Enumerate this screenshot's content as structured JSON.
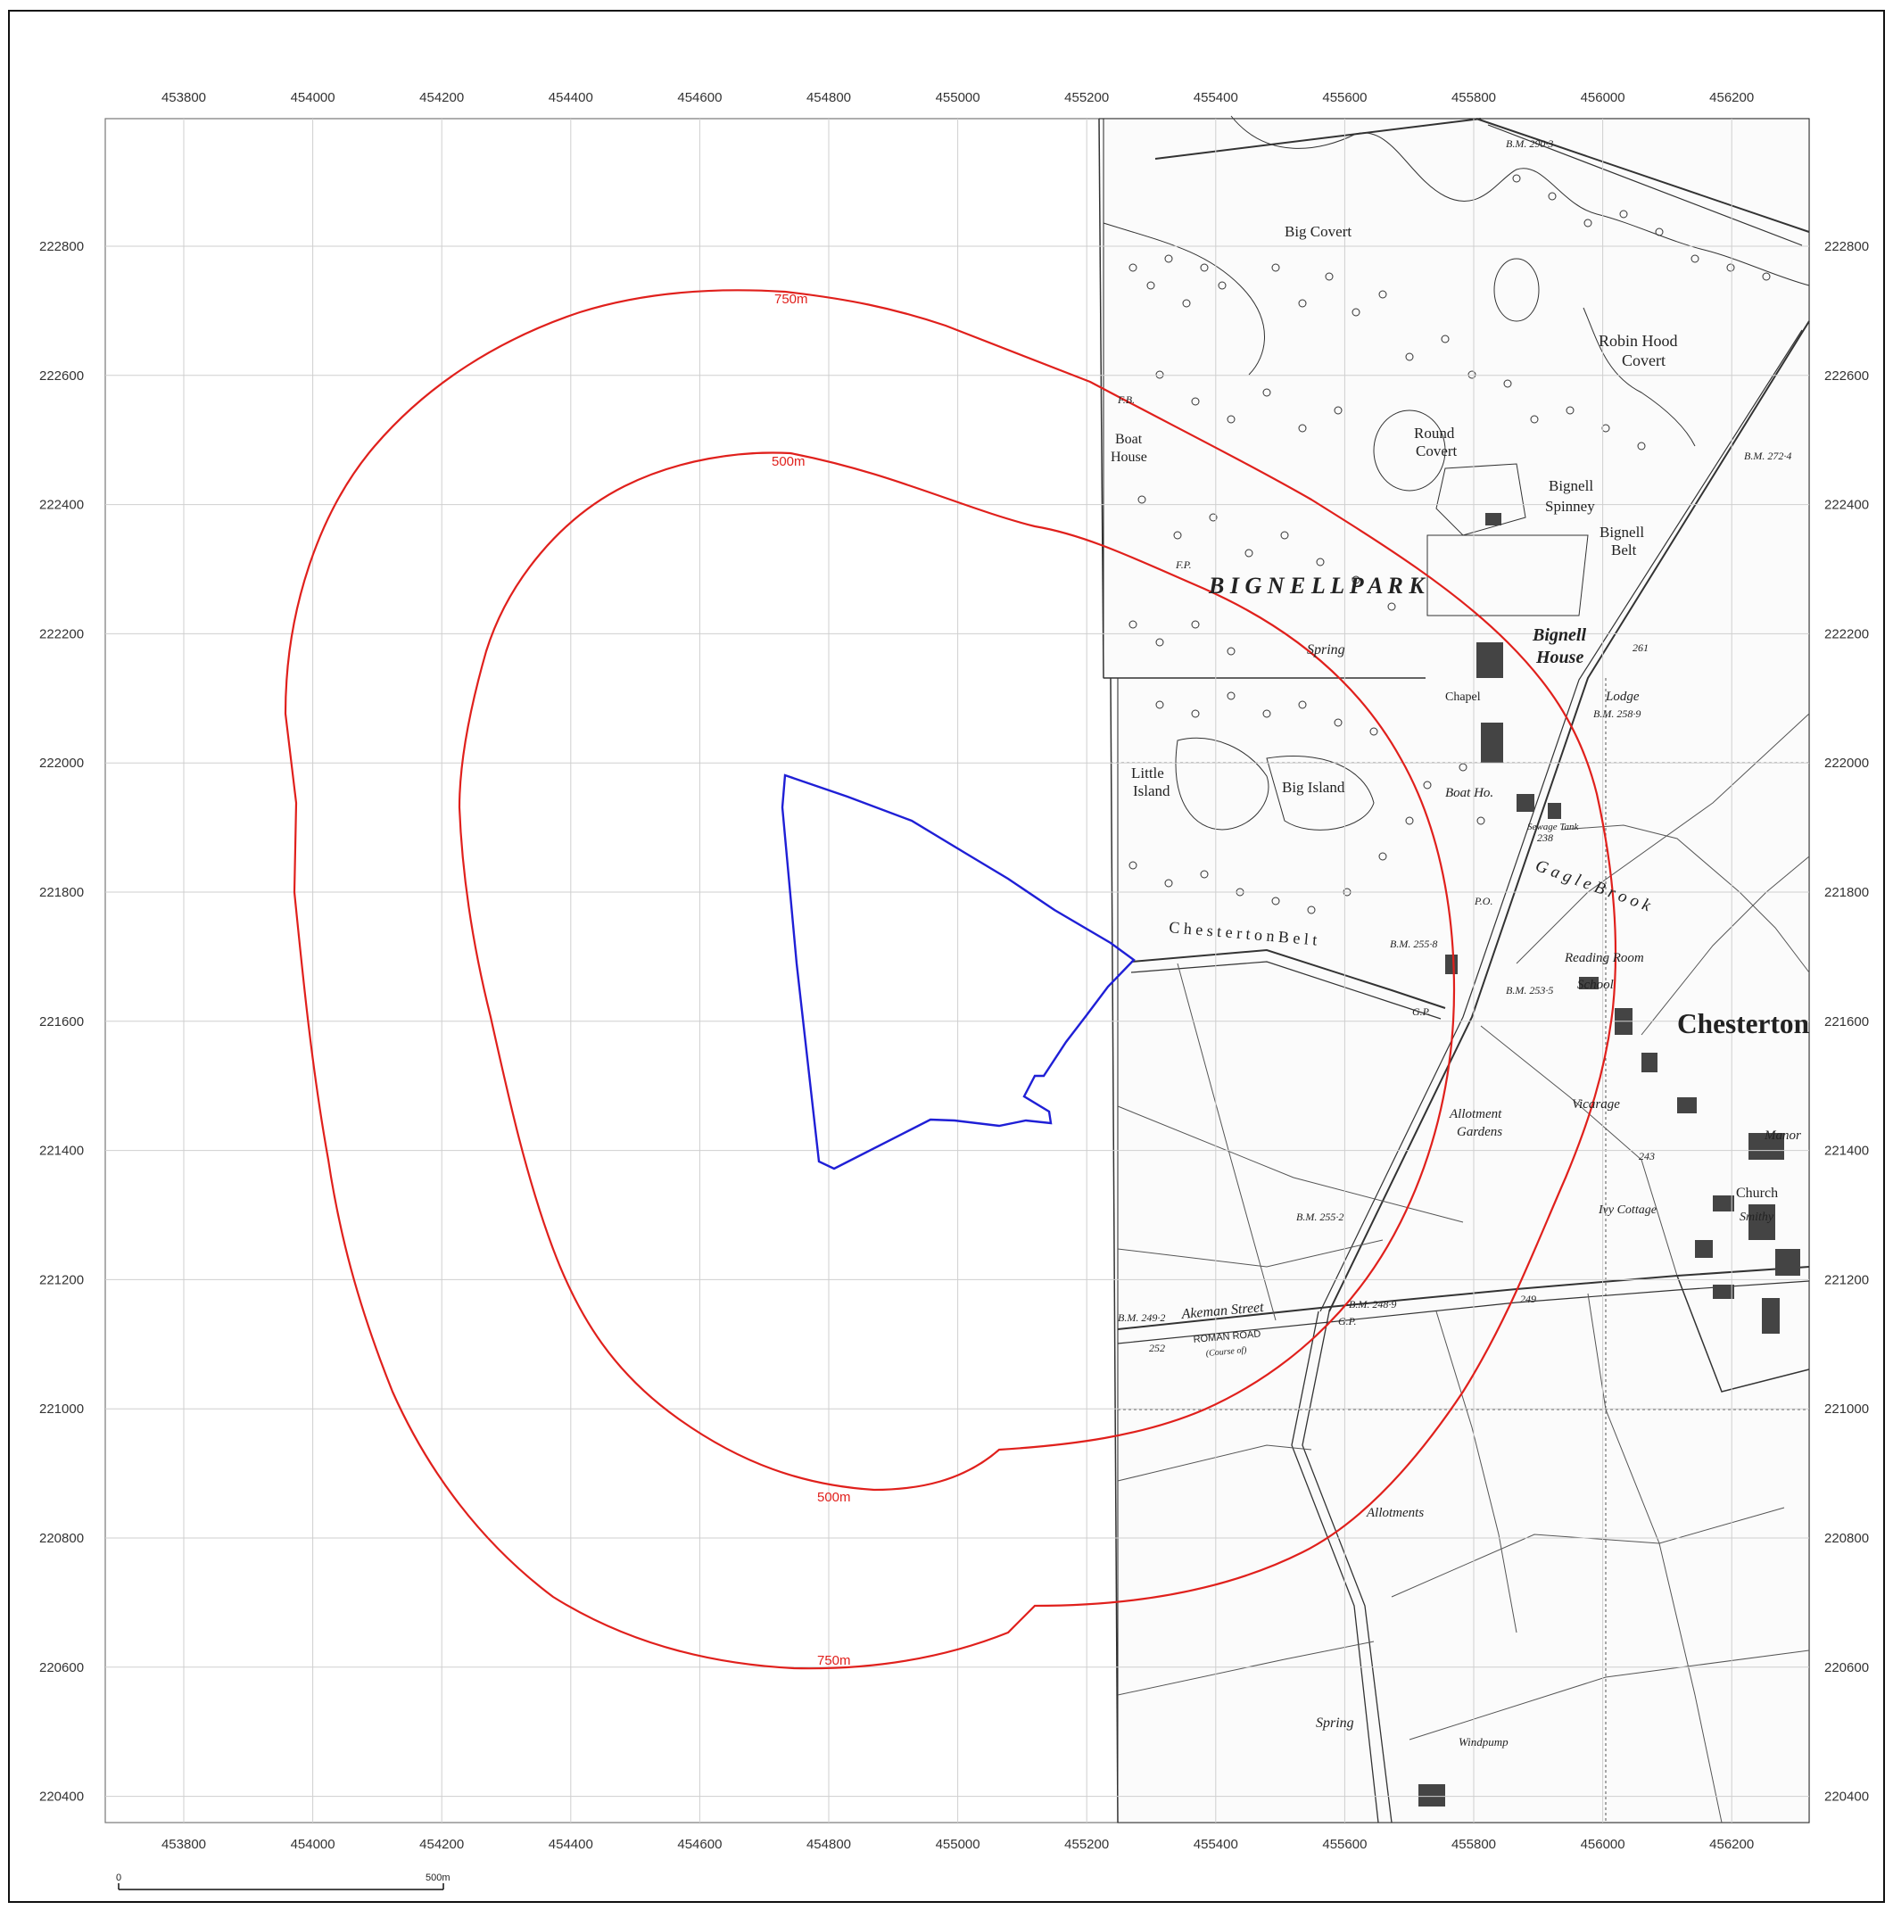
{
  "map": {
    "x_ticks": [
      "453800",
      "454000",
      "454200",
      "454400",
      "454600",
      "454800",
      "455000",
      "455200",
      "455400",
      "455600",
      "455800",
      "456000",
      "456200"
    ],
    "y_ticks": [
      "222800",
      "222600",
      "222400",
      "222200",
      "222000",
      "221800",
      "221600",
      "221400",
      "221200",
      "221000",
      "220800",
      "220600",
      "220400"
    ],
    "buffer_labels": {
      "outer_top": "750m",
      "outer_bottom": "750m",
      "inner_top": "500m",
      "inner_bottom": "500m"
    },
    "buffer_color": "#e0201c",
    "site_boundary_color": "#1f1fd6",
    "scale_bar": {
      "start": "0",
      "end": "500m"
    },
    "place_labels": {
      "big_covert": "Big Covert",
      "robin_hood": "Robin Hood",
      "covert": "Covert",
      "boat_house": "Boat",
      "boat_house2": "House",
      "round_covert": "Round",
      "round_covert2": "Covert",
      "bignell_spinney": "Bignell",
      "bignell_spinney2": "Spinney",
      "bignell_belt": "Bignell",
      "bignell_belt2": "Belt",
      "bignell_park": "B I G N E L L   P A R K",
      "spring": "Spring",
      "bignell_house": "Bignell",
      "bignell_house2": "House",
      "lodge": "Lodge",
      "chapel": "Chapel",
      "little_island": "Little",
      "little_island2": "Island",
      "big_island": "Big Island",
      "boat_ho": "Boat Ho.",
      "gagle_brook": "G a g l e   B r o o k",
      "chesterton_belt": "C h e s t e r t o n   B e l t",
      "reading_room": "Reading Room",
      "school": "School",
      "chesterton": "Chesterton",
      "vicarage": "Vicarage",
      "allotment_gardens": "Allotment",
      "allotment_gardens2": "Gardens",
      "manor": "Manor",
      "church": "Church",
      "ivy_cottage": "Ivy Cottage",
      "smithy": "Smithy",
      "akeman_street": "Akeman Street",
      "roman_road": "ROMAN ROAD",
      "course_of": "(Course of)",
      "allotments": "Allotments",
      "spring2": "Spring",
      "windpump": "Windpump",
      "bm_290": "B.M. 290·3",
      "bm_272": "B.M. 272·4",
      "bm_258": "B.M. 258·9",
      "bm_255_8": "B.M. 255·8",
      "bm_253": "B.M. 253·5",
      "bm_255_2": "B.M. 255·2",
      "bm_248": "B.M. 248·9",
      "bm_249": "B.M. 249·2",
      "n252": "252",
      "n249": "249",
      "n261": "261",
      "n238": "238",
      "n243": "243",
      "gp1": "G.P.",
      "gp2": "G.P.",
      "po": "P.O.",
      "fp": "F.P.",
      "fb": "F.B.",
      "sewage_tank": "Sewage Tank"
    }
  }
}
